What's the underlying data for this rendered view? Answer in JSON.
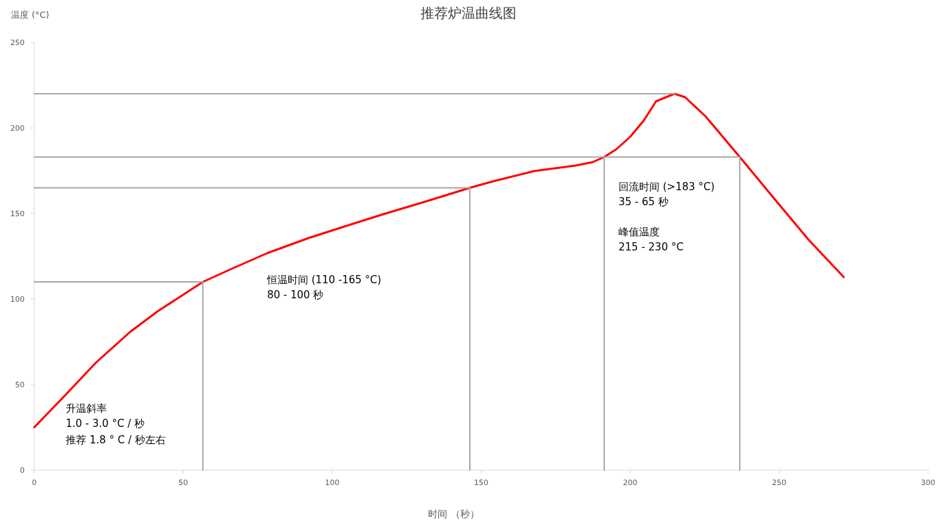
{
  "chart_data": {
    "type": "line",
    "title": "推荐炉温曲线图",
    "xlabel": "时间 （秒）",
    "ylabel": "温度 (°C)",
    "xlim": [
      0,
      300
    ],
    "xticks": [
      0,
      50,
      100,
      150,
      200,
      250,
      300
    ],
    "ylim": [
      0,
      250
    ],
    "yticks": [
      0,
      50,
      100,
      150,
      200,
      250
    ],
    "grid": false,
    "marker": "none",
    "line_style": "solid",
    "series": [
      {
        "color": "#a6a6a6",
        "x": [
          0,
          56.6,
          56.6
        ],
        "values": [
          110,
          110,
          0
        ]
      },
      {
        "color": "#a6a6a6",
        "x": [
          0,
          146.2,
          146.2
        ],
        "values": [
          165,
          165,
          0
        ]
      },
      {
        "color": "#a6a6a6",
        "x": [
          0,
          236.8,
          236.8
        ],
        "values": [
          183,
          183,
          0
        ]
      },
      {
        "color": "#a6a6a6",
        "x": [
          191.3,
          191.3
        ],
        "values": [
          183,
          0
        ]
      },
      {
        "color": "#a6a6a6",
        "x": [
          0,
          215
        ],
        "values": [
          220,
          220
        ]
      },
      {
        "color": "#ff0000",
        "x": [
          0,
          10.3,
          20.7,
          32.2,
          41.4,
          56.6,
          66.7,
          78.2,
          92,
          103.4,
          117.2,
          131,
          146.2,
          154,
          167.8,
          181.6,
          187.4,
          191.3,
          195.4,
          200,
          204.6,
          208.7,
          214.9,
          218.4,
          225.3,
          236.8,
          248.3,
          259.8,
          271.7
        ],
        "values": [
          25,
          43.6,
          62.8,
          80.8,
          92.8,
          110,
          118,
          126.8,
          135.6,
          142,
          149.6,
          156.8,
          165,
          168.8,
          174.8,
          178,
          180,
          183,
          187.6,
          194.8,
          204.4,
          215.6,
          220,
          218,
          206.8,
          183,
          158.8,
          134.8,
          112.8
        ]
      }
    ],
    "annotations": [
      "升温斜率",
      "1.0 - 3.0 °C / 秒",
      "推荐 1.8 ° C / 秒左右",
      "恒温时间 (110 -165 °C)",
      "80 - 100 秒",
      "回流时间 (>183 °C)",
      "35 - 65 秒",
      "峰值温度",
      "215 - 230 °C"
    ]
  }
}
